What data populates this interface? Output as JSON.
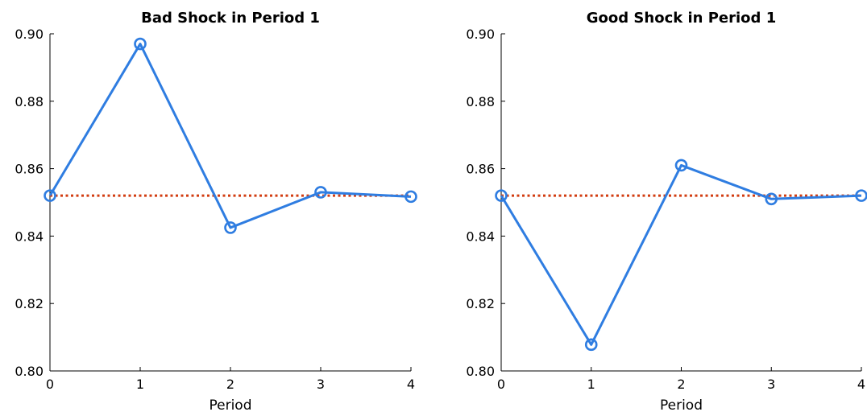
{
  "chart_data": [
    {
      "type": "line",
      "title": "Bad Shock in Period 1",
      "xlabel": "Period",
      "ylabel": "",
      "x": [
        0,
        1,
        2,
        3,
        4
      ],
      "xticks": [
        "0",
        "1",
        "2",
        "3",
        "4"
      ],
      "xlim": [
        0,
        4
      ],
      "ylim": [
        0.8,
        0.9
      ],
      "yticks": [
        "0.80",
        "0.82",
        "0.84",
        "0.86",
        "0.88",
        "0.90"
      ],
      "grid": false,
      "series": [
        {
          "values": [
            0.852,
            0.897,
            0.8425,
            0.853,
            0.8517
          ],
          "color": "#2f7de1",
          "style": "solid",
          "marker": "circle"
        },
        {
          "values": [
            0.852,
            0.852,
            0.852,
            0.852,
            0.852
          ],
          "color": "#d23c10",
          "style": "dotted",
          "marker": "none"
        }
      ]
    },
    {
      "type": "line",
      "title": "Good Shock in Period 1",
      "xlabel": "Period",
      "ylabel": "",
      "x": [
        0,
        1,
        2,
        3,
        4
      ],
      "xticks": [
        "0",
        "1",
        "2",
        "3",
        "4"
      ],
      "xlim": [
        0,
        4
      ],
      "ylim": [
        0.8,
        0.9
      ],
      "yticks": [
        "0.80",
        "0.82",
        "0.84",
        "0.86",
        "0.88",
        "0.90"
      ],
      "grid": false,
      "series": [
        {
          "values": [
            0.852,
            0.8078,
            0.861,
            0.851,
            0.852
          ],
          "color": "#2f7de1",
          "style": "solid",
          "marker": "circle"
        },
        {
          "values": [
            0.852,
            0.852,
            0.852,
            0.852,
            0.852
          ],
          "color": "#d23c10",
          "style": "dotted",
          "marker": "none"
        }
      ]
    }
  ]
}
